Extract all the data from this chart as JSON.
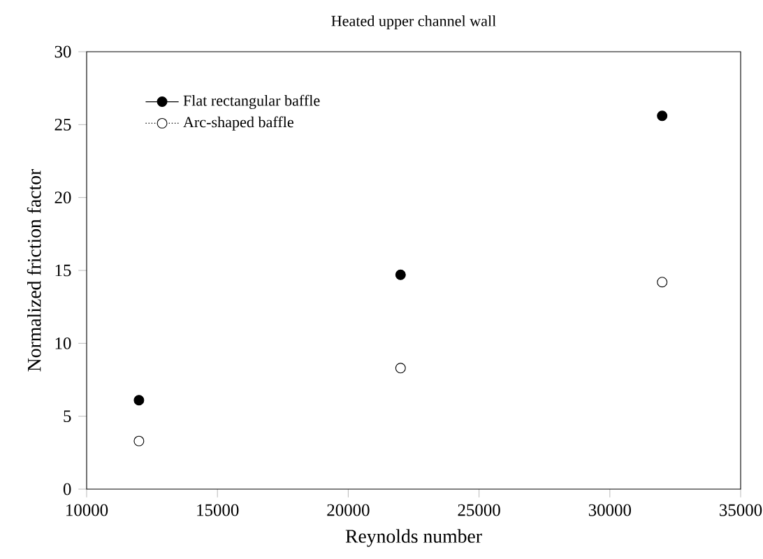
{
  "chart_data": {
    "type": "scatter",
    "title": "Heated upper channel wall",
    "xlabel": "Reynolds number",
    "ylabel": "Normalized friction factor",
    "x": [
      12000,
      22000,
      32000
    ],
    "series": [
      {
        "name": "Flat rectangular baffle",
        "color": "#000000",
        "values": [
          6.1,
          14.7,
          25.6
        ]
      },
      {
        "name": "Arc-shaped baffle",
        "color": "#ffffff",
        "values": [
          3.3,
          8.3,
          14.2
        ]
      }
    ],
    "xlim": [
      10000,
      35000
    ],
    "xticks": [
      10000,
      15000,
      20000,
      25000,
      30000,
      35000
    ],
    "ylim": [
      0,
      30
    ],
    "yticks": [
      0,
      5,
      10,
      15,
      20,
      25,
      30
    ],
    "grid": false,
    "legend": "top left",
    "marker": "circle"
  }
}
